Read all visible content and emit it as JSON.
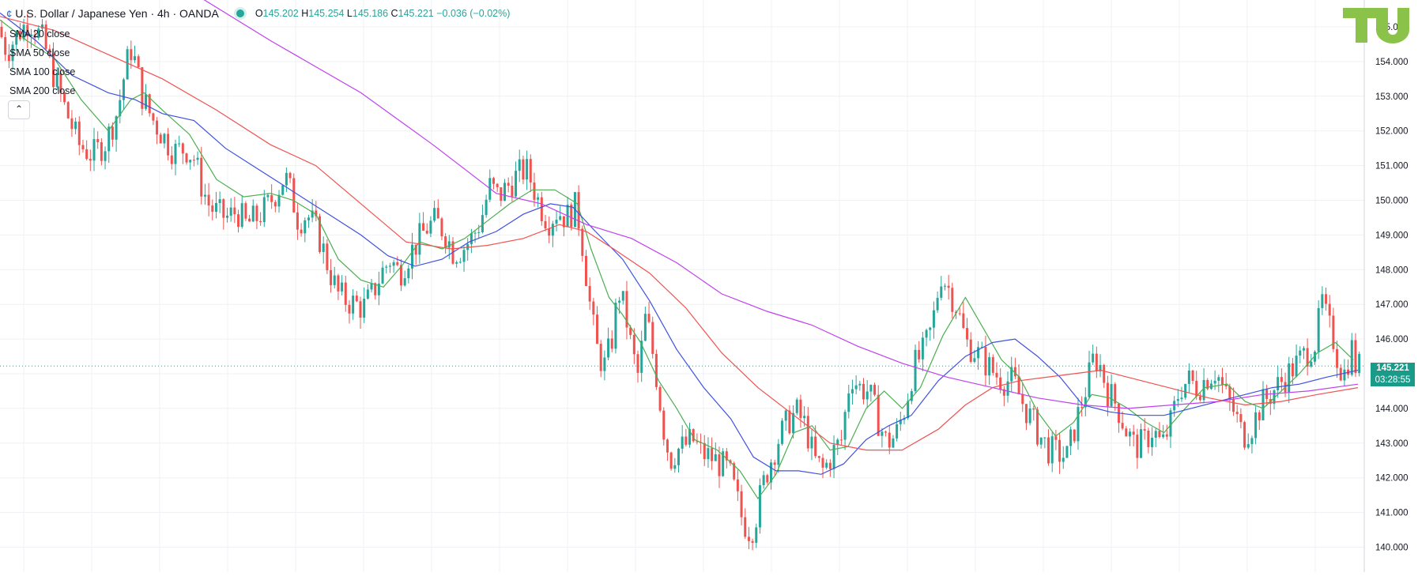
{
  "header": {
    "symbol": "U.S. Dollar / Japanese Yen · 4h · OANDA",
    "open_label": "O",
    "open": "145.202",
    "high_label": "H",
    "high": "145.254",
    "low_label": "L",
    "low": "145.186",
    "close_label": "C",
    "close": "145.221",
    "change": "−0.036 (−0.02%)"
  },
  "indicators": [
    "SMA 20 close",
    "SMA 50 close",
    "SMA 100 close",
    "SMA 200 close"
  ],
  "price_tag": {
    "price": "145.221",
    "countdown": "03:28:55"
  },
  "colors": {
    "up": "#26a69a",
    "down": "#ef5350",
    "sma20": "#4caf50",
    "sma50": "#3f51e0",
    "sma100": "#ef5350",
    "sma200": "#c040f0",
    "grid": "#eef1f5",
    "last_price": "#26a69a"
  },
  "chart_data": {
    "type": "candlestick",
    "title": "U.S. Dollar / Japanese Yen · 4h · OANDA",
    "ylim": [
      139.7,
      155.4
    ],
    "y_ticks": [
      "140.000",
      "141.000",
      "142.000",
      "143.000",
      "144.000",
      "145.000",
      "146.000",
      "147.000",
      "148.000",
      "149.000",
      "150.000",
      "151.000",
      "152.000",
      "153.000",
      "154.000",
      "155.000"
    ],
    "last_price": 145.221,
    "grid": true,
    "close_path": [
      [
        0,
        155.0
      ],
      [
        10,
        154.3
      ],
      [
        22,
        154.8
      ],
      [
        35,
        155.2
      ],
      [
        50,
        154.6
      ],
      [
        62,
        153.6
      ],
      [
        75,
        152.6
      ],
      [
        90,
        151.6
      ],
      [
        105,
        151.3
      ],
      [
        120,
        151.7
      ],
      [
        133,
        152.6
      ],
      [
        140,
        153.6
      ],
      [
        147,
        154.4
      ],
      [
        153,
        153.9
      ],
      [
        160,
        153.0
      ],
      [
        170,
        152.4
      ],
      [
        182,
        151.9
      ],
      [
        195,
        151.4
      ],
      [
        208,
        151.5
      ],
      [
        218,
        151.2
      ],
      [
        226,
        150.4
      ],
      [
        235,
        149.8
      ],
      [
        245,
        149.6
      ],
      [
        255,
        149.5
      ],
      [
        265,
        149.7
      ],
      [
        275,
        149.3
      ],
      [
        287,
        149.5
      ],
      [
        298,
        149.8
      ],
      [
        310,
        150.3
      ],
      [
        318,
        150.7
      ],
      [
        325,
        150.2
      ],
      [
        333,
        149.4
      ],
      [
        342,
        149.6
      ],
      [
        350,
        149.3
      ],
      [
        358,
        148.8
      ],
      [
        367,
        148.0
      ],
      [
        377,
        147.3
      ],
      [
        387,
        147.1
      ],
      [
        397,
        147.0
      ],
      [
        405,
        146.9
      ],
      [
        415,
        147.3
      ],
      [
        425,
        147.9
      ],
      [
        435,
        148.3
      ],
      [
        445,
        147.9
      ],
      [
        455,
        148.4
      ],
      [
        465,
        148.8
      ],
      [
        475,
        149.2
      ],
      [
        485,
        149.4
      ],
      [
        495,
        149.1
      ],
      [
        505,
        148.5
      ],
      [
        515,
        148.6
      ],
      [
        525,
        148.9
      ],
      [
        535,
        149.4
      ],
      [
        545,
        150.4
      ],
      [
        555,
        150.1
      ],
      [
        565,
        150.4
      ],
      [
        575,
        150.7
      ],
      [
        585,
        150.9
      ],
      [
        592,
        150.5
      ],
      [
        600,
        149.9
      ],
      [
        610,
        149.4
      ],
      [
        620,
        149.7
      ],
      [
        630,
        149.5
      ],
      [
        640,
        149.8
      ],
      [
        645,
        149.3
      ],
      [
        650,
        148.3
      ],
      [
        658,
        146.6
      ],
      [
        665,
        145.6
      ],
      [
        672,
        145.2
      ],
      [
        680,
        145.9
      ],
      [
        688,
        147.4
      ],
      [
        695,
        146.8
      ],
      [
        703,
        145.6
      ],
      [
        710,
        144.9
      ],
      [
        717,
        146.6
      ],
      [
        722,
        146.2
      ],
      [
        730,
        144.9
      ],
      [
        738,
        143.4
      ],
      [
        745,
        142.5
      ],
      [
        752,
        142.8
      ],
      [
        760,
        142.9
      ],
      [
        770,
        143.1
      ],
      [
        780,
        142.7
      ],
      [
        790,
        142.6
      ],
      [
        800,
        142.4
      ],
      [
        810,
        142.2
      ],
      [
        818,
        141.5
      ],
      [
        825,
        140.8
      ],
      [
        832,
        140.5
      ],
      [
        838,
        140.6
      ],
      [
        846,
        141.6
      ],
      [
        855,
        142.4
      ],
      [
        865,
        143.1
      ],
      [
        875,
        143.6
      ],
      [
        885,
        143.9
      ],
      [
        895,
        143.5
      ],
      [
        905,
        142.5
      ],
      [
        915,
        142.2
      ],
      [
        925,
        142.7
      ],
      [
        935,
        143.1
      ],
      [
        945,
        145.0
      ],
      [
        955,
        144.6
      ],
      [
        965,
        144.5
      ],
      [
        975,
        143.7
      ],
      [
        985,
        143.0
      ],
      [
        995,
        143.2
      ],
      [
        1005,
        144.0
      ],
      [
        1015,
        145.2
      ],
      [
        1025,
        145.6
      ],
      [
        1035,
        146.3
      ],
      [
        1045,
        147.9
      ],
      [
        1055,
        147.4
      ],
      [
        1063,
        146.9
      ],
      [
        1073,
        145.9
      ],
      [
        1085,
        145.6
      ],
      [
        1095,
        145.3
      ],
      [
        1105,
        145.0
      ],
      [
        1115,
        144.8
      ],
      [
        1125,
        144.8
      ],
      [
        1135,
        144.2
      ],
      [
        1145,
        143.7
      ],
      [
        1155,
        143.2
      ],
      [
        1165,
        142.8
      ],
      [
        1175,
        142.7
      ],
      [
        1185,
        142.6
      ],
      [
        1195,
        143.6
      ],
      [
        1205,
        144.5
      ],
      [
        1215,
        145.5
      ],
      [
        1222,
        145.2
      ],
      [
        1230,
        144.5
      ],
      [
        1240,
        144.1
      ],
      [
        1250,
        143.4
      ],
      [
        1260,
        142.9
      ],
      [
        1270,
        143.0
      ],
      [
        1280,
        143.4
      ],
      [
        1290,
        142.9
      ],
      [
        1300,
        143.6
      ],
      [
        1310,
        144.6
      ],
      [
        1320,
        144.8
      ],
      [
        1330,
        144.6
      ],
      [
        1340,
        144.9
      ],
      [
        1350,
        145.1
      ],
      [
        1360,
        144.4
      ],
      [
        1370,
        143.9
      ],
      [
        1380,
        143.2
      ],
      [
        1390,
        143.5
      ],
      [
        1400,
        144.1
      ],
      [
        1410,
        144.4
      ],
      [
        1420,
        144.7
      ],
      [
        1430,
        145.0
      ],
      [
        1440,
        145.3
      ],
      [
        1450,
        145.6
      ],
      [
        1460,
        145.9
      ],
      [
        1468,
        147.1
      ],
      [
        1473,
        146.5
      ],
      [
        1480,
        146.0
      ],
      [
        1487,
        145.2
      ],
      [
        1493,
        145.0
      ],
      [
        1500,
        145.8
      ],
      [
        1505,
        145.2
      ]
    ],
    "sma_paths": {
      "sma20": [
        [
          0,
          155.2
        ],
        [
          30,
          154.6
        ],
        [
          60,
          154.1
        ],
        [
          90,
          152.9
        ],
        [
          120,
          152.0
        ],
        [
          145,
          152.9
        ],
        [
          160,
          153.1
        ],
        [
          180,
          152.6
        ],
        [
          210,
          151.9
        ],
        [
          240,
          150.6
        ],
        [
          270,
          150.1
        ],
        [
          300,
          150.2
        ],
        [
          325,
          150.0
        ],
        [
          350,
          149.6
        ],
        [
          375,
          148.3
        ],
        [
          400,
          147.7
        ],
        [
          425,
          147.5
        ],
        [
          445,
          148.1
        ],
        [
          465,
          148.8
        ],
        [
          490,
          148.6
        ],
        [
          515,
          148.9
        ],
        [
          540,
          149.4
        ],
        [
          565,
          149.9
        ],
        [
          590,
          150.3
        ],
        [
          615,
          150.3
        ],
        [
          640,
          149.9
        ],
        [
          655,
          148.6
        ],
        [
          675,
          147.2
        ],
        [
          690,
          146.7
        ],
        [
          710,
          145.9
        ],
        [
          730,
          144.8
        ],
        [
          750,
          144.0
        ],
        [
          770,
          143.1
        ],
        [
          795,
          142.8
        ],
        [
          820,
          142.2
        ],
        [
          840,
          141.4
        ],
        [
          860,
          142.1
        ],
        [
          880,
          143.3
        ],
        [
          900,
          143.5
        ],
        [
          920,
          142.8
        ],
        [
          940,
          142.9
        ],
        [
          960,
          144.0
        ],
        [
          980,
          144.5
        ],
        [
          1000,
          144.0
        ],
        [
          1020,
          144.6
        ],
        [
          1045,
          146.1
        ],
        [
          1070,
          147.2
        ],
        [
          1090,
          146.3
        ],
        [
          1110,
          145.4
        ],
        [
          1130,
          144.9
        ],
        [
          1150,
          143.9
        ],
        [
          1170,
          143.2
        ],
        [
          1190,
          143.6
        ],
        [
          1210,
          144.4
        ],
        [
          1230,
          144.3
        ],
        [
          1250,
          144.0
        ],
        [
          1270,
          143.6
        ],
        [
          1290,
          143.3
        ],
        [
          1310,
          143.9
        ],
        [
          1335,
          144.6
        ],
        [
          1360,
          144.7
        ],
        [
          1380,
          144.2
        ],
        [
          1400,
          144.0
        ],
        [
          1420,
          144.5
        ],
        [
          1440,
          145.0
        ],
        [
          1460,
          145.6
        ],
        [
          1480,
          145.9
        ],
        [
          1500,
          145.4
        ]
      ],
      "sma50": [
        [
          0,
          155.4
        ],
        [
          40,
          154.6
        ],
        [
          80,
          153.6
        ],
        [
          120,
          153.1
        ],
        [
          150,
          152.9
        ],
        [
          180,
          152.5
        ],
        [
          215,
          152.3
        ],
        [
          250,
          151.5
        ],
        [
          280,
          151.0
        ],
        [
          310,
          150.5
        ],
        [
          340,
          150.0
        ],
        [
          370,
          149.5
        ],
        [
          400,
          149.0
        ],
        [
          430,
          148.4
        ],
        [
          460,
          148.1
        ],
        [
          490,
          148.3
        ],
        [
          520,
          148.8
        ],
        [
          550,
          149.1
        ],
        [
          580,
          149.6
        ],
        [
          610,
          149.9
        ],
        [
          635,
          149.8
        ],
        [
          660,
          149.1
        ],
        [
          690,
          148.3
        ],
        [
          720,
          147.1
        ],
        [
          750,
          145.7
        ],
        [
          780,
          144.6
        ],
        [
          810,
          143.7
        ],
        [
          835,
          142.6
        ],
        [
          860,
          142.2
        ],
        [
          885,
          142.2
        ],
        [
          910,
          142.1
        ],
        [
          935,
          142.4
        ],
        [
          960,
          143.1
        ],
        [
          985,
          143.5
        ],
        [
          1010,
          143.8
        ],
        [
          1040,
          144.8
        ],
        [
          1070,
          145.5
        ],
        [
          1100,
          145.9
        ],
        [
          1125,
          146.0
        ],
        [
          1150,
          145.5
        ],
        [
          1175,
          144.9
        ],
        [
          1200,
          144.1
        ],
        [
          1230,
          143.9
        ],
        [
          1260,
          143.8
        ],
        [
          1290,
          143.8
        ],
        [
          1320,
          144.0
        ],
        [
          1350,
          144.2
        ],
        [
          1380,
          144.4
        ],
        [
          1410,
          144.6
        ],
        [
          1440,
          144.7
        ],
        [
          1470,
          144.9
        ],
        [
          1505,
          145.1
        ]
      ],
      "sma100": [
        [
          0,
          155.3
        ],
        [
          60,
          154.9
        ],
        [
          120,
          154.2
        ],
        [
          180,
          153.5
        ],
        [
          240,
          152.6
        ],
        [
          300,
          151.6
        ],
        [
          350,
          151.0
        ],
        [
          400,
          149.9
        ],
        [
          450,
          148.8
        ],
        [
          500,
          148.6
        ],
        [
          540,
          148.7
        ],
        [
          580,
          148.9
        ],
        [
          620,
          149.3
        ],
        [
          650,
          149.1
        ],
        [
          680,
          148.6
        ],
        [
          720,
          147.9
        ],
        [
          760,
          146.9
        ],
        [
          800,
          145.6
        ],
        [
          840,
          144.6
        ],
        [
          880,
          143.8
        ],
        [
          920,
          143.0
        ],
        [
          960,
          142.8
        ],
        [
          1000,
          142.8
        ],
        [
          1040,
          143.4
        ],
        [
          1070,
          144.1
        ],
        [
          1100,
          144.6
        ],
        [
          1130,
          144.8
        ],
        [
          1160,
          144.9
        ],
        [
          1190,
          145.0
        ],
        [
          1220,
          145.1
        ],
        [
          1250,
          144.9
        ],
        [
          1280,
          144.7
        ],
        [
          1310,
          144.5
        ],
        [
          1340,
          144.3
        ],
        [
          1380,
          144.1
        ],
        [
          1420,
          144.2
        ],
        [
          1460,
          144.4
        ],
        [
          1505,
          144.6
        ]
      ],
      "sma200": [
        [
          0,
          158.4
        ],
        [
          100,
          157.4
        ],
        [
          200,
          156.2
        ],
        [
          300,
          154.6
        ],
        [
          400,
          153.1
        ],
        [
          480,
          151.6
        ],
        [
          550,
          150.2
        ],
        [
          600,
          149.9
        ],
        [
          650,
          149.3
        ],
        [
          700,
          148.9
        ],
        [
          750,
          148.2
        ],
        [
          800,
          147.3
        ],
        [
          850,
          146.8
        ],
        [
          900,
          146.4
        ],
        [
          950,
          145.8
        ],
        [
          1000,
          145.3
        ],
        [
          1050,
          144.9
        ],
        [
          1100,
          144.6
        ],
        [
          1150,
          144.3
        ],
        [
          1200,
          144.1
        ],
        [
          1250,
          144.0
        ],
        [
          1300,
          144.1
        ],
        [
          1350,
          144.2
        ],
        [
          1400,
          144.4
        ],
        [
          1450,
          144.5
        ],
        [
          1505,
          144.7
        ]
      ]
    }
  }
}
